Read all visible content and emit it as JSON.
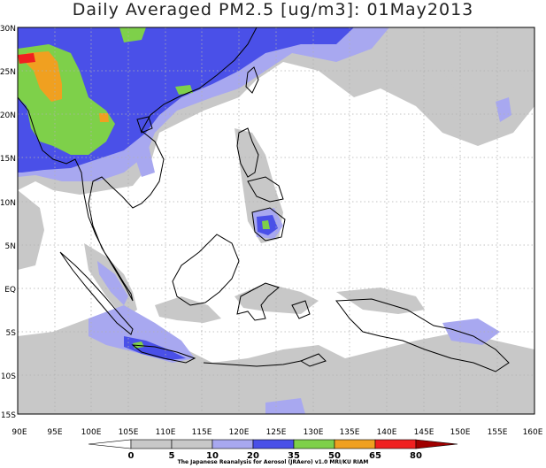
{
  "title": "Daily Averaged PM2.5 [ug/m3]: 01May2013",
  "credit": "The Japanese Reanalysis for Aerosol (JRAero) v1.0 MRI/KU RIAM",
  "lat_labels": [
    "30N",
    "25N",
    "20N",
    "15N",
    "10N",
    "5N",
    "EQ",
    "5S",
    "10S",
    "15S"
  ],
  "lon_labels": [
    "90E",
    "95E",
    "100E",
    "105E",
    "110E",
    "115E",
    "120E",
    "125E",
    "130E",
    "135E",
    "140E",
    "145E",
    "150E",
    "155E",
    "160E"
  ],
  "colorbar": {
    "labels": [
      "0",
      "5",
      "10",
      "20",
      "35",
      "50",
      "65",
      "80"
    ],
    "colors": [
      "#ffffff",
      "#c8c8c8",
      "#a8a8f0",
      "#4a50e8",
      "#7ed04a",
      "#f0a020",
      "#f02020",
      "#a00000"
    ]
  },
  "map_extent": {
    "lon": [
      90,
      160
    ],
    "lat": [
      -15,
      30
    ]
  },
  "colors": {
    "coast": "#000000",
    "grid": "#b0b0b0",
    "frame": "#000000"
  }
}
